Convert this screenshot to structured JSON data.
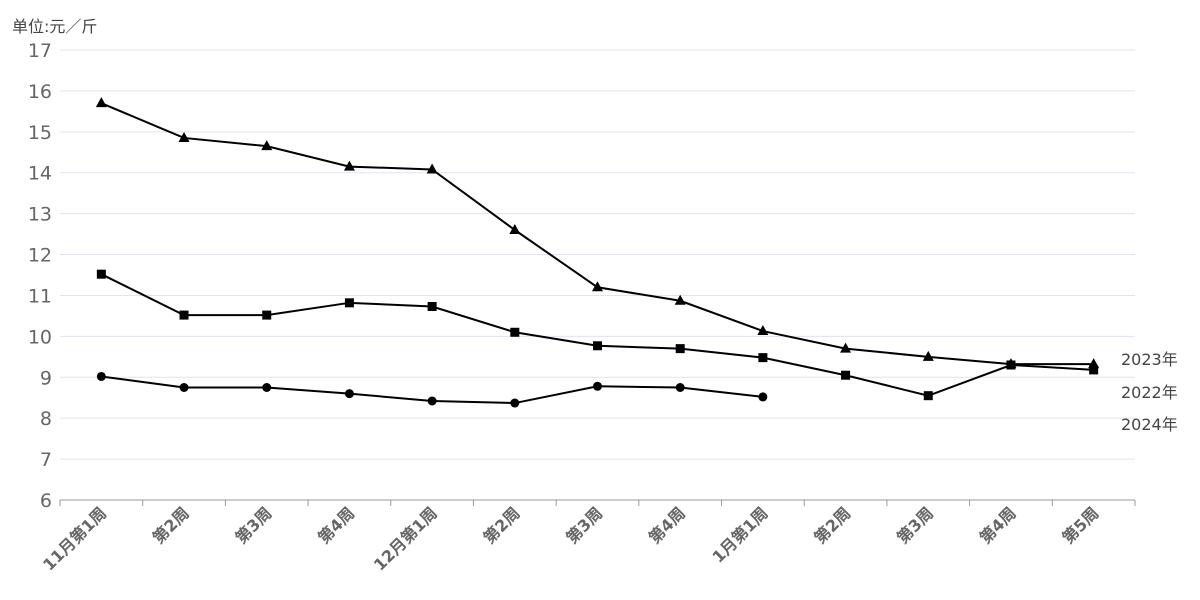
{
  "chart_data": {
    "type": "line",
    "unit_label": "单位:元／斤",
    "categories": [
      "11月第1周",
      "第2周",
      "第3周",
      "第4周",
      "12月第1周",
      "第2周",
      "第3周",
      "第4周",
      "1月第1周",
      "第2周",
      "第3周",
      "第4周",
      "第5周"
    ],
    "ylim": [
      6,
      17
    ],
    "yticks": [
      6,
      7,
      8,
      9,
      10,
      11,
      12,
      13,
      14,
      15,
      16,
      17
    ],
    "grid": true,
    "series": [
      {
        "name": "2023年",
        "marker": "triangle",
        "values": [
          15.7,
          14.85,
          14.65,
          14.15,
          14.08,
          12.6,
          11.2,
          10.87,
          10.13,
          9.7,
          9.5,
          9.32,
          9.32
        ]
      },
      {
        "name": "2022年",
        "marker": "square",
        "values": [
          11.52,
          10.52,
          10.52,
          10.82,
          10.73,
          10.1,
          9.77,
          9.7,
          9.48,
          9.05,
          8.55,
          9.3,
          9.18
        ]
      },
      {
        "name": "2024年",
        "marker": "circle",
        "values": [
          9.02,
          8.75,
          8.75,
          8.6,
          8.42,
          8.37,
          8.78,
          8.75,
          8.52,
          null,
          null,
          null,
          null
        ]
      }
    ]
  }
}
